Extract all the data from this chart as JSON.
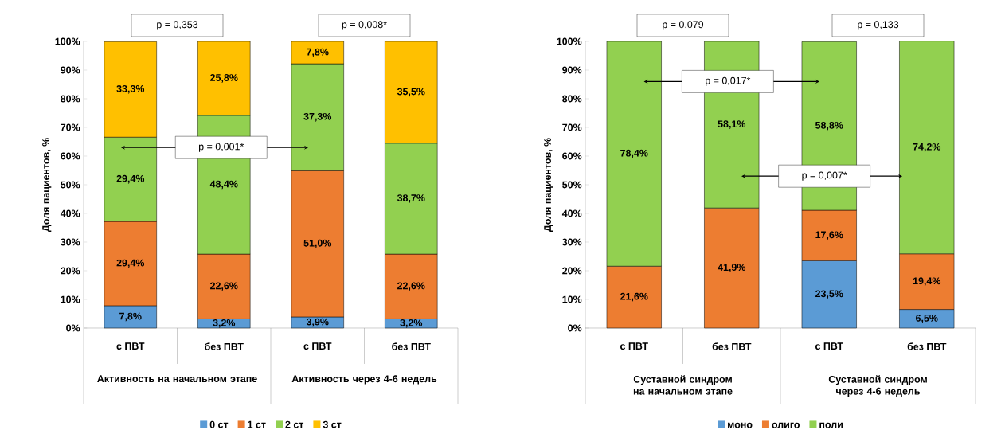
{
  "chart_data": [
    {
      "type": "bar",
      "stacked": true,
      "ylabel": "Доля пациентов, %",
      "categories": [
        "с ПВТ",
        "без ПВТ",
        "с ПВТ",
        "без ПВТ"
      ],
      "series": [
        {
          "name": "0 ст",
          "color": "#5b9bd5",
          "values": [
            7.8,
            3.2,
            3.9,
            3.2
          ],
          "value_labels": [
            "7,8%",
            "3,2%",
            "3,9%",
            "3,2%"
          ]
        },
        {
          "name": "1 ст",
          "color": "#ed7d31",
          "values": [
            29.4,
            22.6,
            51.0,
            22.6
          ],
          "value_labels": [
            "29,4%",
            "22,6%",
            "51,0%",
            "22,6%"
          ]
        },
        {
          "name": "2 ст",
          "color": "#92d050",
          "values": [
            29.4,
            48.4,
            37.3,
            38.7
          ],
          "value_labels": [
            "29,4%",
            "48,4%",
            "37,3%",
            "38,7%"
          ]
        },
        {
          "name": "3 ст",
          "color": "#ffc000",
          "values": [
            33.3,
            25.8,
            7.8,
            35.5
          ],
          "value_labels": [
            "33,3%",
            "25,8%",
            "7,8%",
            "35,5%"
          ]
        }
      ],
      "ylim": [
        0,
        100
      ],
      "yticks": [
        {
          "value": 0,
          "label": "0%"
        },
        {
          "value": 10,
          "label": "10%"
        },
        {
          "value": 20,
          "label": "20%"
        },
        {
          "value": 30,
          "label": "30%"
        },
        {
          "value": 40,
          "label": "40%"
        },
        {
          "value": 50,
          "label": "50%"
        },
        {
          "value": 60,
          "label": "60%"
        },
        {
          "value": 70,
          "label": "70%"
        },
        {
          "value": 80,
          "label": "80%"
        },
        {
          "value": 90,
          "label": "90%"
        },
        {
          "value": 100,
          "label": "100%"
        }
      ],
      "legend": "bottom",
      "annotations": [
        "Активность на начальном этапе",
        "Активность через 4-6 недель",
        "p = 0,353",
        "p = 0,008*",
        "p = 0,001*"
      ]
    },
    {
      "type": "bar",
      "stacked": true,
      "ylabel": "Доля пациентов, %",
      "categories": [
        "с ПВТ",
        "без ПВТ",
        "с ПВТ",
        "без ПВТ"
      ],
      "series": [
        {
          "name": "моно",
          "color": "#5b9bd5",
          "values": [
            null,
            null,
            23.5,
            6.5
          ],
          "value_labels": [
            null,
            null,
            "23,5%",
            "6,5%"
          ]
        },
        {
          "name": "олиго",
          "color": "#ed7d31",
          "values": [
            21.6,
            41.9,
            17.6,
            19.4
          ],
          "value_labels": [
            "21,6%",
            "41,9%",
            "17,6%",
            "19,4%"
          ]
        },
        {
          "name": "поли",
          "color": "#92d050",
          "values": [
            78.4,
            58.1,
            58.8,
            74.2
          ],
          "value_labels": [
            "78,4%",
            "58,1%",
            "58,8%",
            "74,2%"
          ]
        }
      ],
      "ylim": [
        0,
        100
      ],
      "yticks": [
        {
          "value": 0,
          "label": "0%"
        },
        {
          "value": 10,
          "label": "10%"
        },
        {
          "value": 20,
          "label": "20%"
        },
        {
          "value": 30,
          "label": "30%"
        },
        {
          "value": 40,
          "label": "40%"
        },
        {
          "value": 50,
          "label": "50%"
        },
        {
          "value": 60,
          "label": "60%"
        },
        {
          "value": 70,
          "label": "70%"
        },
        {
          "value": 80,
          "label": "80%"
        },
        {
          "value": 90,
          "label": "90%"
        },
        {
          "value": 100,
          "label": "100%"
        }
      ],
      "legend": "bottom",
      "annotations": [
        "Суставной синдром на начальном этапе",
        "Суставной синдром через 4-6 недель",
        "p = 0,079",
        "p = 0,133",
        "p = 0,017*",
        "p = 0,007*"
      ]
    }
  ]
}
